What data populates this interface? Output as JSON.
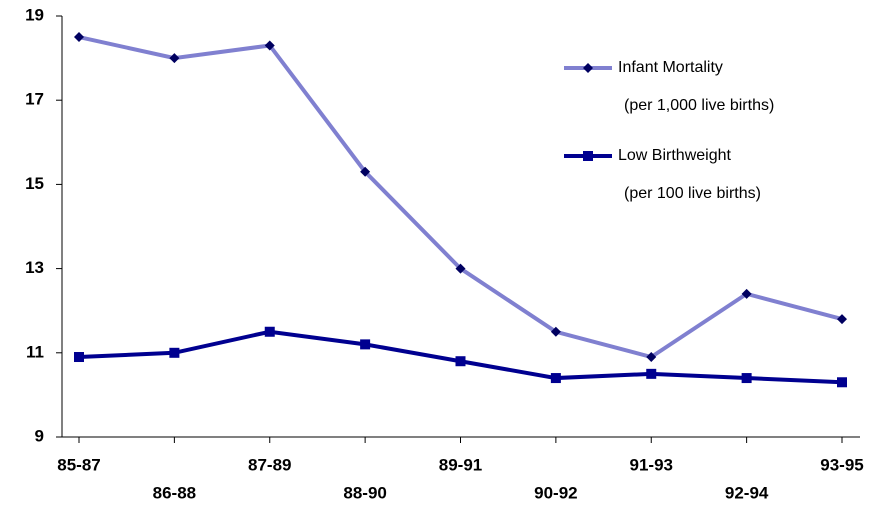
{
  "chart_data": {
    "type": "line",
    "categories": [
      "85-87",
      "86-88",
      "87-89",
      "88-90",
      "89-91",
      "90-92",
      "91-93",
      "92-94",
      "93-95"
    ],
    "series": [
      {
        "name": "Infant Mortality",
        "note": "(per 1,000 live births)",
        "color": "#8080d0",
        "marker": "diamond",
        "values": [
          18.5,
          18.0,
          18.3,
          15.3,
          13.0,
          11.5,
          10.9,
          12.4,
          11.8
        ]
      },
      {
        "name": "Low Birthweight",
        "note": "(per 100 live births)",
        "color": "#000090",
        "marker": "square",
        "values": [
          10.9,
          11.0,
          11.5,
          11.2,
          10.8,
          10.4,
          10.5,
          10.4,
          10.3
        ]
      }
    ],
    "ylim": [
      9,
      19
    ],
    "yticks": [
      9,
      11,
      13,
      15,
      17,
      19
    ],
    "grid": false
  }
}
